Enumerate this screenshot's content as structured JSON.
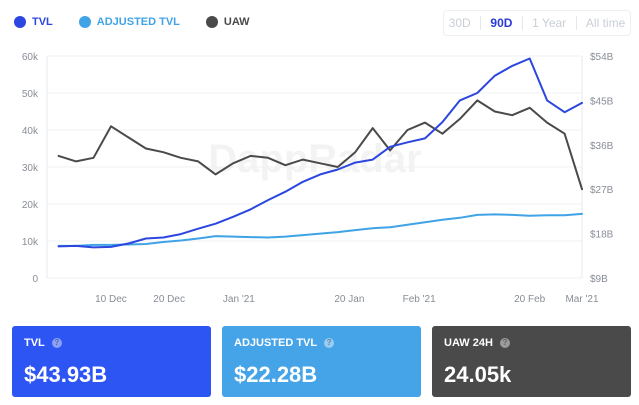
{
  "legend": {
    "items": [
      {
        "label": "TVL",
        "color": "#2c46e0"
      },
      {
        "label": "ADJUSTED TVL",
        "color": "#3fa3e6"
      },
      {
        "label": "UAW",
        "color": "#4a4a4a"
      }
    ]
  },
  "range_tabs": {
    "options": [
      "30D",
      "90D",
      "1 Year",
      "All time"
    ],
    "selected": "90D"
  },
  "watermark": "DappRadar",
  "chart_data": {
    "type": "line",
    "x": [
      "2020-12-01",
      "2020-12-04",
      "2020-12-07",
      "2020-12-10",
      "2020-12-13",
      "2020-12-16",
      "2020-12-19",
      "2020-12-22",
      "2020-12-25",
      "2020-12-28",
      "2020-12-31",
      "2021-01-03",
      "2021-01-06",
      "2021-01-09",
      "2021-01-12",
      "2021-01-15",
      "2021-01-18",
      "2021-01-21",
      "2021-01-24",
      "2021-01-27",
      "2021-01-30",
      "2021-02-02",
      "2021-02-05",
      "2021-02-08",
      "2021-02-11",
      "2021-02-14",
      "2021-02-17",
      "2021-02-20",
      "2021-02-23",
      "2021-02-26",
      "2021-03-01"
    ],
    "x_ticks": [
      {
        "value": "2020-12-10",
        "label": "10 Dec"
      },
      {
        "value": "2020-12-20",
        "label": "20 Dec"
      },
      {
        "value": "2021-01-01",
        "label": "Jan '21"
      },
      {
        "value": "2021-01-20",
        "label": "20 Jan"
      },
      {
        "value": "2021-02-01",
        "label": "Feb '21"
      },
      {
        "value": "2021-02-20",
        "label": "20 Feb"
      },
      {
        "value": "2021-03-01",
        "label": "Mar '21"
      }
    ],
    "y_left": {
      "min": 0,
      "max": 60000,
      "ticks": [
        0,
        10000,
        20000,
        30000,
        40000,
        50000,
        60000
      ],
      "tick_labels": [
        "0",
        "10k",
        "20k",
        "30k",
        "40k",
        "50k",
        "60k"
      ]
    },
    "y_right": {
      "min": 9000000000,
      "max": 54000000000,
      "ticks": [
        9000000000,
        18000000000,
        27000000000,
        36000000000,
        45000000000,
        54000000000
      ],
      "tick_labels": [
        "$9B",
        "$18B",
        "$27B",
        "$36B",
        "$45B",
        "$54B"
      ]
    },
    "grid": true,
    "series": [
      {
        "name": "TVL",
        "axis": "right",
        "color": "#2c46e0",
        "values": [
          15400000000,
          15500000000,
          15200000000,
          15300000000,
          16000000000,
          17000000000,
          17200000000,
          17900000000,
          19000000000,
          20000000000,
          21400000000,
          22900000000,
          24800000000,
          26500000000,
          28500000000,
          30000000000,
          31000000000,
          32400000000,
          33000000000,
          35600000000,
          36500000000,
          37300000000,
          40600000000,
          45000000000,
          46500000000,
          50000000000,
          52000000000,
          53500000000,
          45000000000,
          42600000000,
          44500000000
        ]
      },
      {
        "name": "ADJUSTED TVL",
        "axis": "right",
        "color": "#3fa3e6",
        "values": [
          15500000000,
          15500000000,
          15700000000,
          15700000000,
          15800000000,
          15900000000,
          16300000000,
          16600000000,
          17000000000,
          17500000000,
          17400000000,
          17300000000,
          17200000000,
          17400000000,
          17700000000,
          18000000000,
          18300000000,
          18700000000,
          19100000000,
          19300000000,
          19800000000,
          20300000000,
          20800000000,
          21200000000,
          21800000000,
          21900000000,
          21800000000,
          21600000000,
          21700000000,
          21700000000,
          22000000000
        ]
      },
      {
        "name": "UAW",
        "axis": "left",
        "color": "#4a4a4a",
        "values": [
          33000,
          31500,
          32500,
          41000,
          38000,
          35000,
          34000,
          32500,
          31500,
          28000,
          31000,
          33000,
          32500,
          30500,
          32000,
          31000,
          30000,
          34000,
          40500,
          34500,
          40000,
          42000,
          39000,
          43000,
          48000,
          45000,
          44000,
          46000,
          42000,
          39000,
          24000
        ]
      }
    ]
  },
  "cards": [
    {
      "label": "TVL",
      "value": "$43.93B",
      "color": "#2d55f4"
    },
    {
      "label": "ADJUSTED TVL",
      "value": "$22.28B",
      "color": "#45a3e8"
    },
    {
      "label": "UAW 24H",
      "value": "24.05k",
      "color": "#4a4a4a"
    }
  ]
}
